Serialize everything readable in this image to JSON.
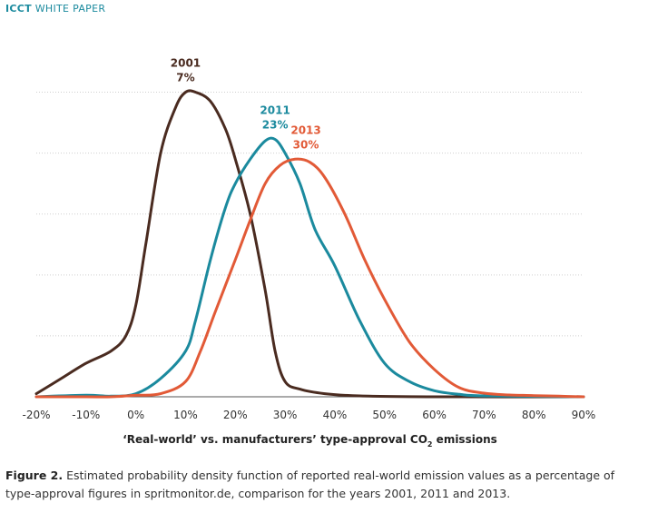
{
  "header": {
    "brand": "ICCT",
    "subtitle": "WHITE PAPER"
  },
  "figure": {
    "caption_label": "Figure 2.",
    "caption_text": " Estimated probability density function of reported real-world emission values as a percentage of type-approval figures in spritmonitor.de, comparison for the years 2001, 2011 and 2013."
  },
  "chart_data": {
    "type": "line",
    "xlabel_prefix": "‘Real-world’ vs. manufacturers’ type-approval CO",
    "xlabel_sub": "2",
    "xlabel_suffix": " emissions",
    "ylabel": "",
    "grid": true,
    "xlim": [
      -20,
      90
    ],
    "ylim": [
      0,
      1.1
    ],
    "x_ticks": [
      "-20%",
      "-10%",
      "0%",
      "10%",
      "20%",
      "30%",
      "40%",
      "50%",
      "60%",
      "70%",
      "80%",
      "90%"
    ],
    "x_tick_values": [
      -20,
      -10,
      0,
      10,
      20,
      30,
      40,
      50,
      60,
      70,
      80,
      90
    ],
    "series": [
      {
        "name": "2001",
        "annotation": "7%",
        "color": "#4a2b20",
        "points": [
          [
            -20,
            0.01
          ],
          [
            -15,
            0.06
          ],
          [
            -10,
            0.11
          ],
          [
            -5,
            0.15
          ],
          [
            -2,
            0.2
          ],
          [
            0,
            0.3
          ],
          [
            2,
            0.5
          ],
          [
            5,
            0.8
          ],
          [
            8,
            0.95
          ],
          [
            10,
            1.0
          ],
          [
            12,
            1.0
          ],
          [
            15,
            0.97
          ],
          [
            18,
            0.88
          ],
          [
            20,
            0.78
          ],
          [
            23,
            0.6
          ],
          [
            26,
            0.35
          ],
          [
            28,
            0.15
          ],
          [
            30,
            0.05
          ],
          [
            33,
            0.025
          ],
          [
            38,
            0.01
          ],
          [
            45,
            0.003
          ],
          [
            60,
            0.0
          ],
          [
            90,
            0.0
          ]
        ]
      },
      {
        "name": "2011",
        "annotation": "23%",
        "color": "#1b8a9e",
        "points": [
          [
            -20,
            0.0
          ],
          [
            -10,
            0.005
          ],
          [
            -5,
            0.002
          ],
          [
            0,
            0.01
          ],
          [
            5,
            0.06
          ],
          [
            10,
            0.15
          ],
          [
            12,
            0.25
          ],
          [
            15,
            0.45
          ],
          [
            18,
            0.62
          ],
          [
            20,
            0.7
          ],
          [
            23,
            0.78
          ],
          [
            26,
            0.84
          ],
          [
            28,
            0.845
          ],
          [
            30,
            0.8
          ],
          [
            33,
            0.7
          ],
          [
            36,
            0.55
          ],
          [
            40,
            0.43
          ],
          [
            45,
            0.25
          ],
          [
            50,
            0.11
          ],
          [
            55,
            0.05
          ],
          [
            60,
            0.02
          ],
          [
            65,
            0.008
          ],
          [
            70,
            0.003
          ],
          [
            90,
            0.0
          ]
        ]
      },
      {
        "name": "2013",
        "annotation": "30%",
        "color": "#e25a37",
        "points": [
          [
            -20,
            0.0
          ],
          [
            -10,
            0.0
          ],
          [
            -5,
            0.0
          ],
          [
            0,
            0.005
          ],
          [
            5,
            0.01
          ],
          [
            10,
            0.05
          ],
          [
            13,
            0.15
          ],
          [
            16,
            0.28
          ],
          [
            20,
            0.45
          ],
          [
            23,
            0.58
          ],
          [
            26,
            0.7
          ],
          [
            29,
            0.76
          ],
          [
            32,
            0.78
          ],
          [
            35,
            0.77
          ],
          [
            38,
            0.72
          ],
          [
            42,
            0.6
          ],
          [
            46,
            0.45
          ],
          [
            50,
            0.32
          ],
          [
            55,
            0.18
          ],
          [
            60,
            0.09
          ],
          [
            65,
            0.03
          ],
          [
            70,
            0.012
          ],
          [
            75,
            0.006
          ],
          [
            80,
            0.004
          ],
          [
            85,
            0.002
          ],
          [
            90,
            0.0
          ]
        ]
      }
    ]
  }
}
